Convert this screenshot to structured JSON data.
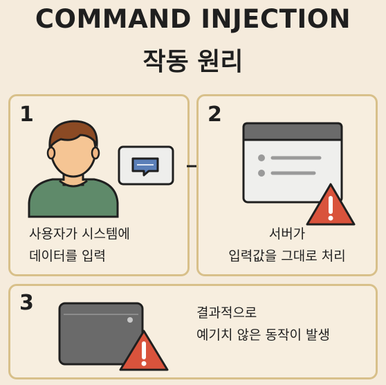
{
  "header": {
    "title": "COMMAND INJECTION",
    "subtitle": "작동 원리"
  },
  "steps": [
    {
      "number": "1",
      "lines": [
        "사용자가 시스템에",
        "데이터를 입력"
      ]
    },
    {
      "number": "2",
      "lines": [
        "서버가",
        "입력값을 그대로 처리"
      ]
    },
    {
      "number": "3",
      "lines": [
        "결과적으로",
        "예기치 않은 동작이 발생"
      ]
    }
  ],
  "colors": {
    "background": "#f5ebdc",
    "panel_border": "#d8c08a",
    "warning": "#d9533c",
    "accent_blue": "#5b7fb8"
  },
  "icons": [
    "user-icon",
    "chat-bubble-icon",
    "arrow-right-icon",
    "browser-window-icon",
    "warning-icon",
    "server-device-icon"
  ]
}
